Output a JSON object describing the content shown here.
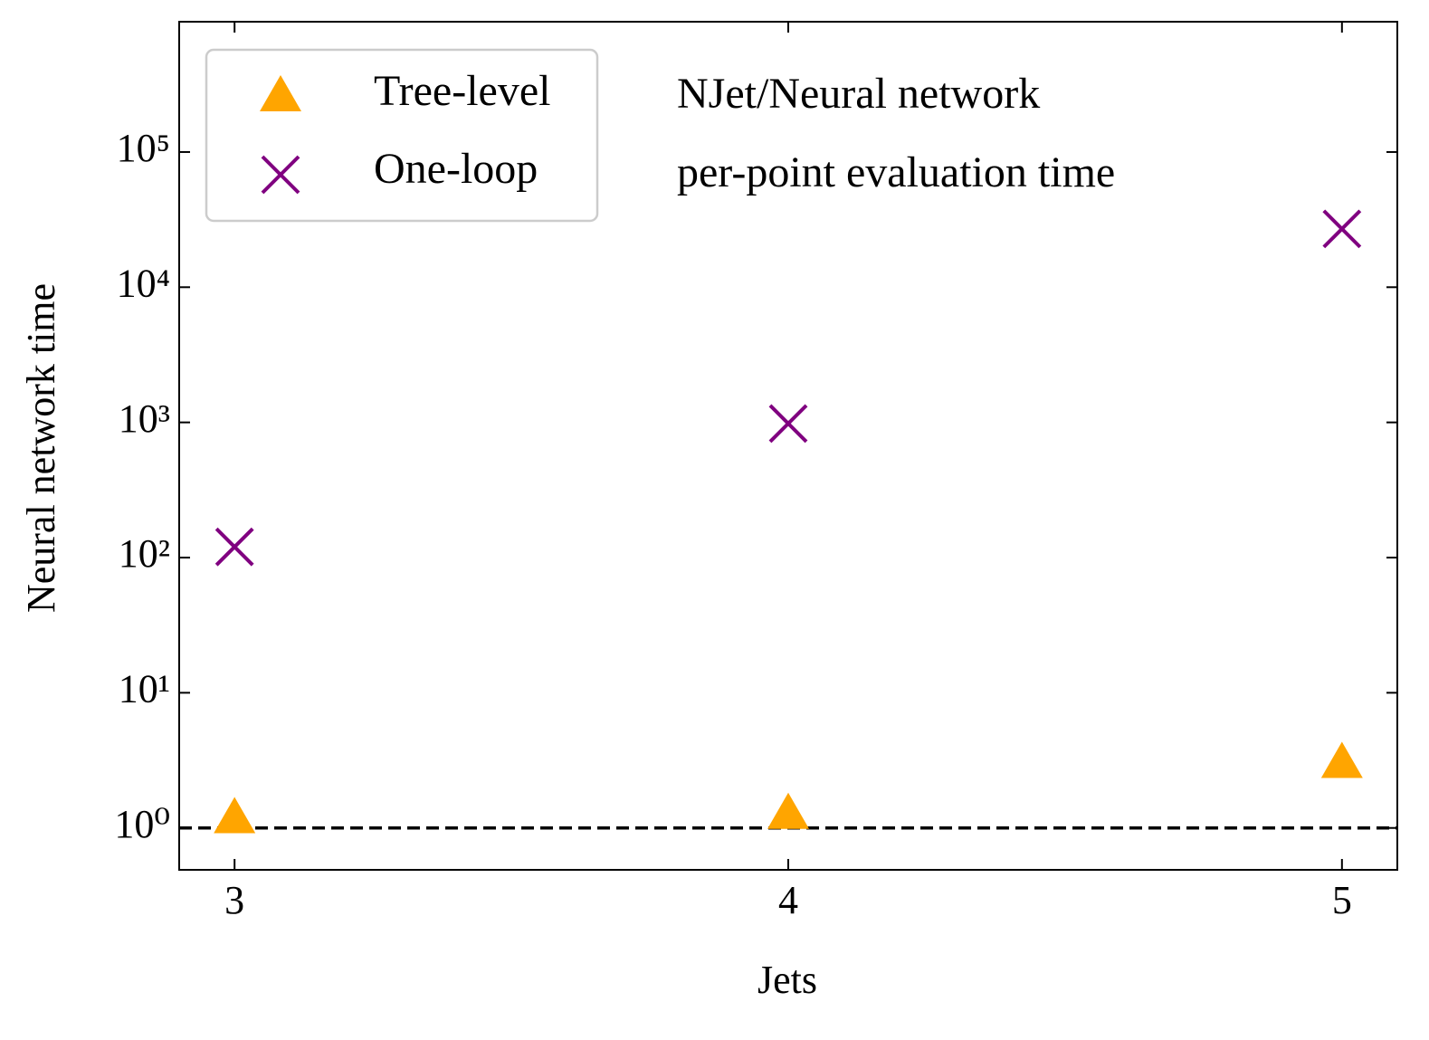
{
  "chart_data": {
    "type": "scatter",
    "xlabel": "Jets",
    "ylabel": "Neural network time",
    "annotations": [
      "NJet/Neural network",
      "per-point evaluation time"
    ],
    "series": [
      {
        "name": "Tree-level",
        "color": "#ffa500",
        "marker": "triangle",
        "x": [
          3,
          4,
          5
        ],
        "values": [
          1.17,
          1.26,
          3.0
        ]
      },
      {
        "name": "One-loop",
        "color": "#800080",
        "marker": "x",
        "x": [
          3,
          4,
          5
        ],
        "values": [
          120,
          980,
          27000
        ]
      }
    ],
    "xlim": [
      2.9,
      5.1
    ],
    "xticks": [
      3,
      4,
      5
    ],
    "ylim": [
      0.49,
      920000
    ],
    "yscale": "log",
    "yticks": [
      {
        "value": 1,
        "label": "10⁰"
      },
      {
        "value": 10,
        "label": "10¹"
      },
      {
        "value": 100,
        "label": "10²"
      },
      {
        "value": 1000,
        "label": "10³"
      },
      {
        "value": 10000,
        "label": "10⁴"
      },
      {
        "value": 100000,
        "label": "10⁵"
      }
    ],
    "hline": 1,
    "legend": "upper left",
    "grid": false
  }
}
